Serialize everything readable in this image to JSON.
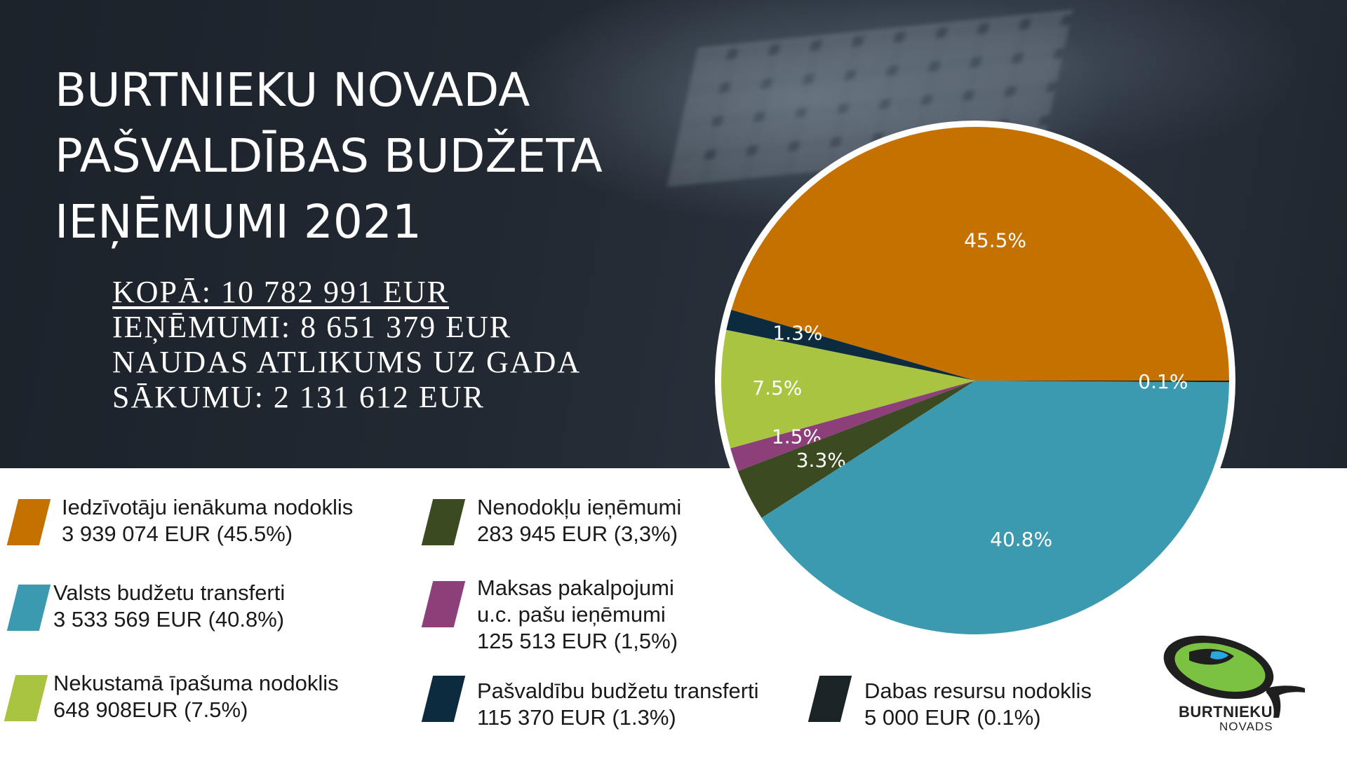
{
  "title_lines": [
    "BURTNIEKU NOVADA",
    "PAŠVALDĪBAS BUDŽETA",
    "IEŅĒMUMI 2021"
  ],
  "totals": {
    "kopa": "KOPĀ: 10 782 991 EUR",
    "ienemumi": "IEŅĒMUMI: 8 651 379 EUR",
    "atlikums_line1": "NAUDAS ATLIKUMS UZ GADA",
    "atlikums_line2": "SĀKUMU: 2 131 612 EUR"
  },
  "legend": [
    {
      "line1": "Iedzīvotāju ienākuma nodoklis",
      "line2": "3 939 074 EUR  (45.5%)",
      "color": "#c57100"
    },
    {
      "line1": "Valsts budžetu transferti",
      "line2": "3 533 569 EUR (40.8%)",
      "color": "#3b9aaf"
    },
    {
      "line1": "Nekustamā īpašuma nodoklis",
      "line2": "648 908EUR  (7.5%)",
      "color": "#a9c441"
    },
    {
      "line1": "Nenodokļu ieņēmumi",
      "line2": "283 945 EUR (3,3%)",
      "color": "#3c4a22"
    },
    {
      "line1": "Maksas pakalpojumi",
      "line2": "u.c. pašu ieņēmumi",
      "line3": "125 513 EUR (1,5%)",
      "color": "#8c3f79"
    },
    {
      "line1": "Pašvaldību budžetu transferti",
      "line2": "115 370 EUR (1.3%)",
      "color": "#0d2b3e"
    },
    {
      "line1": "Dabas resursu nodoklis",
      "line2": "5 000 EUR (0.1%)",
      "color": "#1a2426"
    }
  ],
  "chart_data": {
    "type": "pie",
    "start": "3 o'clock, counterclockwise",
    "slices": [
      {
        "label": "45.5%",
        "value": 45.5,
        "color": "#c57100"
      },
      {
        "label": "1.3%",
        "value": 1.3,
        "color": "#0d2b3e"
      },
      {
        "label": "7.5%",
        "value": 7.5,
        "color": "#a9c441"
      },
      {
        "label": "1.5%",
        "value": 1.5,
        "color": "#8c3f79"
      },
      {
        "label": "3.3%",
        "value": 3.3,
        "color": "#3c4a22"
      },
      {
        "label": "40.8%",
        "value": 40.8,
        "color": "#3b9aaf"
      },
      {
        "label": "0.1%",
        "value": 0.1,
        "color": "#1a2426"
      }
    ]
  },
  "logo": {
    "line1": "BURTNIEKU",
    "line2": "NOVADS"
  }
}
